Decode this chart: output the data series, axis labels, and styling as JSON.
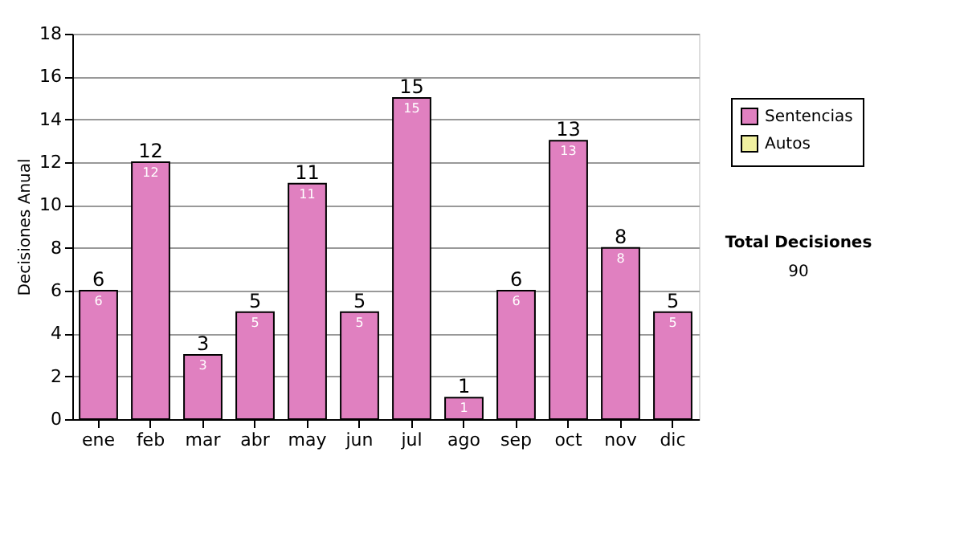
{
  "chart_data": {
    "type": "bar",
    "ylabel": "Decisiones Anual",
    "categories": [
      "ene",
      "feb",
      "mar",
      "abr",
      "may",
      "jun",
      "jul",
      "ago",
      "sep",
      "oct",
      "nov",
      "dic"
    ],
    "series": [
      {
        "name": "Sentencias",
        "color": "#e080c0",
        "values": [
          6,
          12,
          3,
          5,
          11,
          5,
          15,
          1,
          6,
          13,
          8,
          5
        ],
        "value_labels": [
          "6",
          "12",
          "3",
          "5",
          "11",
          "5",
          "15",
          "1",
          "6",
          "13",
          "8",
          "5"
        ]
      },
      {
        "name": "Autos",
        "color": "#f0f0a0",
        "values": [
          null,
          null,
          null,
          null,
          null,
          null,
          null,
          null,
          null,
          null,
          null,
          null
        ]
      }
    ],
    "ylim": [
      0,
      18
    ],
    "yticks": [
      0,
      2,
      4,
      6,
      8,
      10,
      12,
      14,
      16,
      18
    ],
    "grid": "y",
    "legend": "right",
    "annotations": [
      "Total Decisiones",
      "90",
      {
        "text": "6",
        "x": "ene",
        "y": 6
      },
      {
        "text": "12",
        "x": "feb",
        "y": 12
      },
      {
        "text": "3",
        "x": "mar",
        "y": 3
      },
      {
        "text": "5",
        "x": "abr",
        "y": 5
      },
      {
        "text": "11",
        "x": "may",
        "y": 11
      },
      {
        "text": "5",
        "x": "jun",
        "y": 5
      },
      {
        "text": "15",
        "x": "jul",
        "y": 15
      },
      {
        "text": "1",
        "x": "ago",
        "y": 1
      },
      {
        "text": "6",
        "x": "sep",
        "y": 6
      },
      {
        "text": "13",
        "x": "oct",
        "y": 13
      },
      {
        "text": "8",
        "x": "nov",
        "y": 8
      },
      {
        "text": "5",
        "x": "dic",
        "y": 5
      }
    ]
  }
}
